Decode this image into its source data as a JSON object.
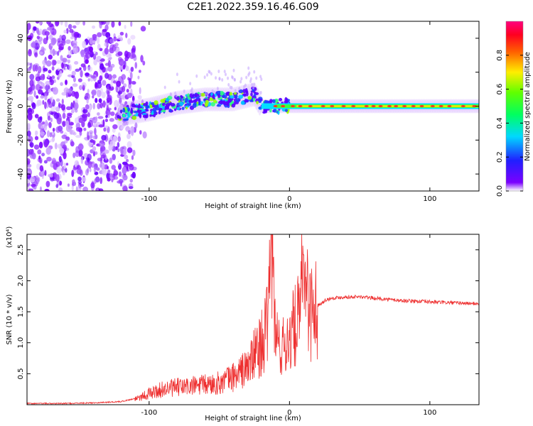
{
  "title": "C2E1.2022.359.16.46.G09",
  "colors": {
    "snr_line": "#ee3030",
    "axis": "#000000"
  },
  "chart_data": [
    {
      "type": "heatmap",
      "xlabel": "Height of straight line (km)",
      "ylabel": "Frequency (Hz)",
      "xlim": [
        -187,
        135
      ],
      "ylim": [
        -50,
        50
      ],
      "xticks": [
        -100,
        0,
        100
      ],
      "yticks": [
        -40,
        -20,
        0,
        20,
        40
      ],
      "grid": false,
      "colorbar": {
        "label": "Normalized spectral amplitude",
        "range": [
          0,
          1
        ],
        "ticks": [
          "0.0",
          "0.2",
          "0.4",
          "0.6",
          "0.8"
        ],
        "colormap": "hsv"
      },
      "features": {
        "noise_region_km": [
          -187,
          -110
        ],
        "signal_onset_km": -122,
        "track_center_hz": [
          {
            "x": -122,
            "y": -5
          },
          {
            "x": -100,
            "y": -2
          },
          {
            "x": -80,
            "y": 2
          },
          {
            "x": -60,
            "y": 4
          },
          {
            "x": -40,
            "y": 4
          },
          {
            "x": -25,
            "y": 7
          },
          {
            "x": -20,
            "y": 0
          },
          {
            "x": 0,
            "y": 0
          },
          {
            "x": 135,
            "y": 0
          }
        ]
      }
    },
    {
      "type": "line",
      "xlabel": "Height of straight line (km)",
      "ylabel": "SNR (10 * v/v)",
      "ylabel_multiplier": "(x10⁴)",
      "xlim": [
        -187,
        135
      ],
      "ylim": [
        0,
        2.75
      ],
      "xticks": [
        -100,
        0,
        100
      ],
      "yticks": [
        "0.5",
        "1.0",
        "1.5",
        "2.0",
        "2.5"
      ],
      "grid": false,
      "series": [
        {
          "values_x": [
            -187,
            -160,
            -140,
            -120,
            -110,
            -100,
            -90,
            -80,
            -70,
            -60,
            -50,
            -40,
            -30,
            -25,
            -20,
            -15,
            -13,
            -10,
            -5,
            0,
            5,
            8,
            10,
            15,
            20,
            25,
            30,
            40,
            50,
            60,
            70,
            80,
            90,
            100,
            110,
            120,
            135
          ],
          "values_y": [
            0.02,
            0.02,
            0.03,
            0.05,
            0.1,
            0.18,
            0.25,
            0.28,
            0.3,
            0.32,
            0.35,
            0.45,
            0.6,
            0.8,
            1.0,
            1.3,
            2.75,
            1.1,
            0.9,
            1.1,
            1.3,
            1.5,
            2.42,
            1.5,
            1.6,
            1.68,
            1.72,
            1.74,
            1.74,
            1.72,
            1.7,
            1.68,
            1.67,
            1.66,
            1.65,
            1.64,
            1.63
          ]
        }
      ]
    }
  ]
}
